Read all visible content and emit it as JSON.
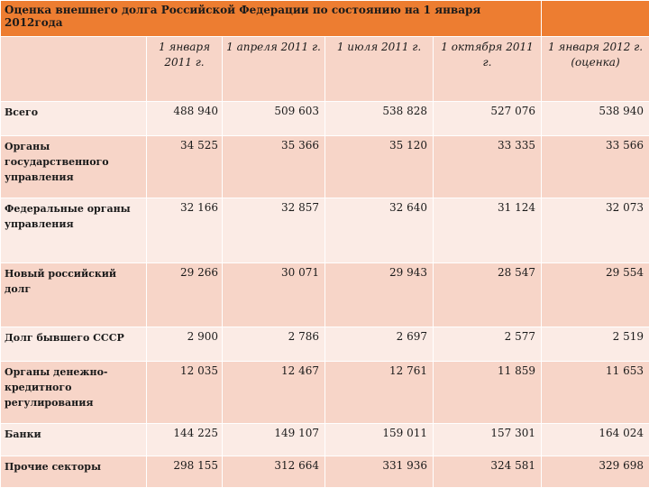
{
  "title": "Оценка внешнего долга Российской Федерации по состоянию на 1  января 2012года",
  "columns": [
    "1 января 2011 г.",
    "1 апреля 2011 г.",
    "1 июля 2011 г.",
    "1 октября 2011 г.",
    "1 января 2012 г. (оценка)"
  ],
  "rows": [
    {
      "label": "Всего",
      "values": [
        "488 940",
        "509 603",
        "538 828",
        "527 076",
        "538 940"
      ]
    },
    {
      "label": "Органы государственного управления",
      "values": [
        "34 525",
        "35 366",
        "35 120",
        "33 335",
        "33 566"
      ]
    },
    {
      "label": "Федеральные органы управления",
      "values": [
        "32 166",
        "32 857",
        "32 640",
        "31 124",
        "32 073"
      ]
    },
    {
      "label": "Новый российский долг",
      "values": [
        "29 266",
        "30 071",
        "29 943",
        "28 547",
        "29 554"
      ]
    },
    {
      "label": "Долг бывшего СССР",
      "values": [
        "2 900",
        "2 786",
        "2 697",
        "2 577",
        "2 519"
      ]
    },
    {
      "label": "Органы денежно-кредитного регулирования",
      "values": [
        "12 035",
        "12 467",
        "12 761",
        "11 859",
        "11 653"
      ]
    },
    {
      "label": "Банки",
      "values": [
        "144 225",
        "149 107",
        "159 011",
        "157 301",
        "164 024"
      ]
    },
    {
      "label": "Прочие секторы",
      "values": [
        "298 155",
        "312 664",
        "331 936",
        "324 581",
        "329 698"
      ]
    }
  ]
}
